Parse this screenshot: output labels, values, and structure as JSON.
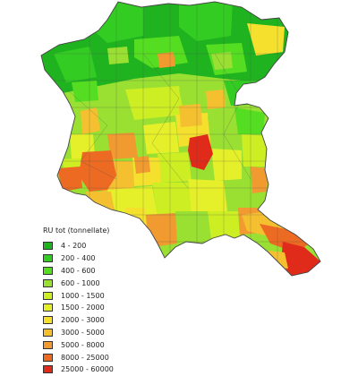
{
  "legend": {
    "title": "RU tot (tonnellate)",
    "classes": [
      {
        "label": "4 - 200",
        "color": "#1fb31f"
      },
      {
        "label": "200 - 400",
        "color": "#33cc22"
      },
      {
        "label": "400 - 600",
        "color": "#55dd22"
      },
      {
        "label": "600 - 1000",
        "color": "#99e033"
      },
      {
        "label": "1000 - 1500",
        "color": "#ccee22"
      },
      {
        "label": "1500 - 2000",
        "color": "#e6f02a"
      },
      {
        "label": "2000 - 3000",
        "color": "#f5e02e"
      },
      {
        "label": "3000 - 5000",
        "color": "#f5c030"
      },
      {
        "label": "5000 - 8000",
        "color": "#f09a30"
      },
      {
        "label": "8000 - 25000",
        "color": "#ec6a22"
      },
      {
        "label": "25000 - 60000",
        "color": "#e02a1a"
      }
    ]
  }
}
